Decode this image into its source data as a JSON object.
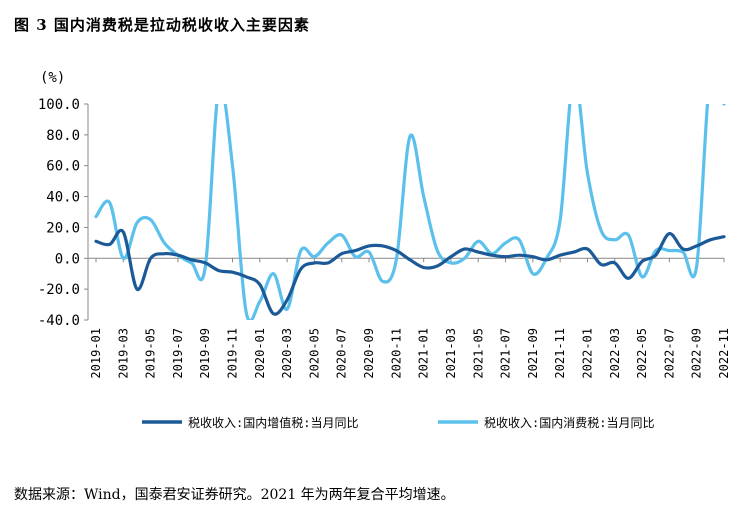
{
  "figure": {
    "title": "图 3 国内消费税是拉动税收收入主要因素",
    "source": "数据来源：Wind，国泰君安证券研究。2021 年为两年复合平均增速。"
  },
  "chart_data": {
    "type": "line",
    "unit_label": "(%)",
    "ylim": [
      -40,
      100
    ],
    "yticks": [
      "100.0",
      "80.0",
      "60.0",
      "40.0",
      "20.0",
      "0.0",
      "-20.0",
      "-40.0"
    ],
    "ytick_values": [
      100,
      80,
      60,
      40,
      20,
      0,
      -20,
      -40
    ],
    "x_tick_labels": [
      "2019-01",
      "2019-03",
      "2019-05",
      "2019-07",
      "2019-09",
      "2019-11",
      "2020-01",
      "2020-03",
      "2020-05",
      "2020-07",
      "2020-09",
      "2020-11",
      "2021-01",
      "2021-03",
      "2021-05",
      "2021-07",
      "2021-09",
      "2021-11",
      "2022-01",
      "2022-03",
      "2022-05",
      "2022-07",
      "2022-09",
      "2022-11"
    ],
    "x": [
      "2019-01",
      "2019-02",
      "2019-03",
      "2019-04",
      "2019-05",
      "2019-06",
      "2019-07",
      "2019-08",
      "2019-09",
      "2019-10",
      "2019-11",
      "2019-12",
      "2020-01",
      "2020-02",
      "2020-03",
      "2020-04",
      "2020-05",
      "2020-06",
      "2020-07",
      "2020-08",
      "2020-09",
      "2020-10",
      "2020-11",
      "2020-12",
      "2021-01",
      "2021-02",
      "2021-03",
      "2021-04",
      "2021-05",
      "2021-06",
      "2021-07",
      "2021-08",
      "2021-09",
      "2021-10",
      "2021-11",
      "2021-12",
      "2022-01",
      "2022-02",
      "2022-03",
      "2022-04",
      "2022-05",
      "2022-06",
      "2022-07",
      "2022-08",
      "2022-09",
      "2022-10",
      "2022-11"
    ],
    "series": [
      {
        "name": "税收收入:国内增值税:当月同比",
        "color": "#1b5a96",
        "values": [
          11,
          9,
          17,
          -20,
          0,
          3,
          2,
          -1,
          -3,
          -8,
          -9,
          -12,
          -17,
          -36,
          -27,
          -7,
          -3,
          -3,
          3,
          5,
          8,
          8,
          5,
          -1,
          -6,
          -5,
          1,
          6,
          4,
          2,
          1,
          2,
          1,
          -1,
          2,
          4,
          6,
          -4,
          -3,
          -13,
          -2,
          2,
          16,
          6,
          8,
          12,
          14
        ],
        "clip_top": false
      },
      {
        "name": "税收收入:国内消费税:当月同比",
        "color": "#5bc0eb",
        "values": [
          27,
          36,
          0,
          23,
          25,
          10,
          2,
          -3,
          -6,
          110,
          60,
          -35,
          -28,
          -10,
          -33,
          5,
          1,
          10,
          15,
          1,
          4,
          -15,
          -1,
          79,
          40,
          5,
          -3,
          0,
          11,
          3,
          10,
          12,
          -10,
          0,
          25,
          118,
          55,
          18,
          12,
          15,
          -12,
          5,
          5,
          4,
          -5,
          120,
          100
        ],
        "clip_top": true
      }
    ],
    "legend_position": "bottom",
    "grid": false
  }
}
